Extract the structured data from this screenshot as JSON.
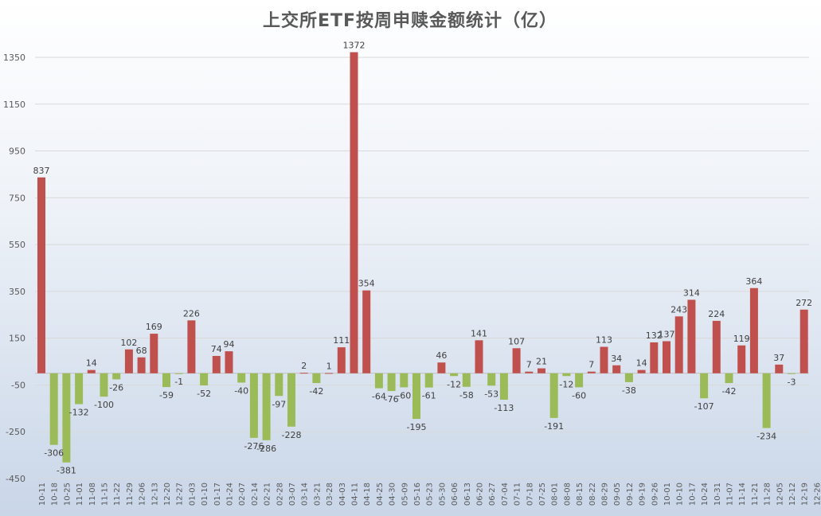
{
  "chart_data": {
    "type": "bar",
    "title": "上交所ETF按周申赎金额统计（亿）",
    "xlabel": "",
    "ylabel": "",
    "ylim": [
      -450,
      1450
    ],
    "yticks": [
      -450,
      -250,
      -50,
      150,
      350,
      550,
      750,
      950,
      1150,
      1350
    ],
    "grid": true,
    "legend": "none",
    "colors": {
      "positive": "#c0504d",
      "negative": "#9bbb59"
    },
    "categories": [
      "10-11",
      "10-18",
      "10-25",
      "11-01",
      "11-08",
      "11-15",
      "11-22",
      "11-29",
      "12-06",
      "12-13",
      "12-20",
      "12-27",
      "01-03",
      "01-10",
      "01-17",
      "01-24",
      "02-07",
      "02-14",
      "02-21",
      "02-28",
      "03-07",
      "03-14",
      "03-21",
      "03-28",
      "04-03",
      "04-11",
      "04-18",
      "04-25",
      "04-30",
      "05-09",
      "05-16",
      "05-23",
      "05-30",
      "06-06",
      "06-13",
      "06-20",
      "06-27",
      "07-04",
      "07-11",
      "07-18",
      "07-25",
      "08-01",
      "08-08",
      "08-15",
      "08-22",
      "08-29",
      "09-05",
      "09-12",
      "09-19",
      "09-26",
      "10-01",
      "10-10",
      "10-17",
      "10-24",
      "10-31",
      "11-07",
      "11-14",
      "11-21",
      "11-28",
      "12-05",
      "12-12",
      "12-19",
      "12-26"
    ],
    "values": [
      837,
      -306,
      -381,
      -132,
      14,
      -100,
      -26,
      102,
      68,
      169,
      -59,
      -1,
      226,
      -52,
      74,
      94,
      -40,
      -276,
      -286,
      -97,
      -228,
      2,
      -42,
      1,
      111,
      1372,
      354,
      -64,
      -76,
      -60,
      -195,
      -61,
      46,
      -12,
      -58,
      141,
      -53,
      -113,
      107,
      7,
      21,
      -191,
      -12,
      -60,
      7,
      113,
      34,
      -38,
      14,
      132,
      137,
      243,
      314,
      -107,
      224,
      -42,
      119,
      364,
      -234,
      37,
      -3,
      272,
      null
    ],
    "hidden_value_labels": [],
    "value_labels": [
      "837",
      "-306",
      "-381",
      "-132",
      "14",
      "-100",
      "-26",
      "102",
      "68",
      "169",
      "-59",
      "-1",
      "226",
      "-52",
      "74",
      "94",
      "-40",
      "-276",
      "-286",
      "-97",
      "-228",
      "2",
      "-42",
      "1",
      "111",
      "1372",
      "354",
      "-64",
      "-76",
      "-60",
      "-195",
      "-61",
      "46",
      "-12",
      "-58",
      "141",
      "-53",
      "-113",
      "107",
      "7",
      "21",
      "-191",
      "-12",
      "-60",
      "7",
      "113",
      "34",
      "-38",
      "14",
      "132",
      "137",
      "243",
      "314",
      "-107",
      "224",
      "-42",
      "119",
      "364",
      "-234",
      "37",
      "-3",
      "272",
      ""
    ]
  }
}
